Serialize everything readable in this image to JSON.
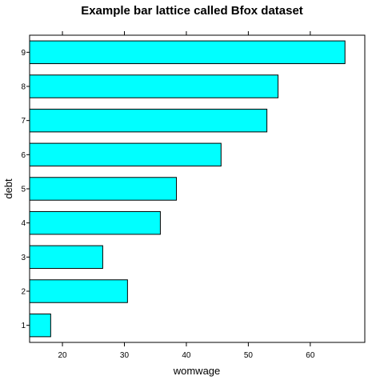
{
  "chart_data": {
    "type": "bar",
    "orientation": "horizontal",
    "title": "Example bar lattice called Bfox dataset",
    "xlabel": "womwage",
    "ylabel": "debt",
    "categories": [
      "1",
      "2",
      "3",
      "4",
      "5",
      "6",
      "7",
      "8",
      "9"
    ],
    "values": [
      18.1,
      30.5,
      26.5,
      35.8,
      38.4,
      45.6,
      53.0,
      54.8,
      65.6
    ],
    "xlim": [
      14.7,
      68.8
    ],
    "x_ticks": [
      20,
      30,
      40,
      50,
      60
    ],
    "grid": false,
    "bar_fill": "#00ffff",
    "bar_stroke": "#000000",
    "legend": "none"
  }
}
